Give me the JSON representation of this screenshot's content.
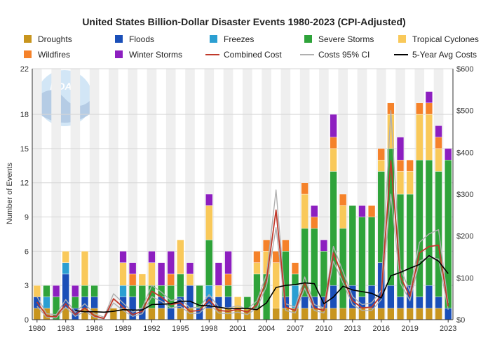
{
  "chart_data": {
    "type": "bar",
    "title": "United States Billion-Dollar Disaster Events 1980-2023 (CPI-Adjusted)",
    "ylabel": "Number of Events",
    "ylim": [
      0,
      22
    ],
    "y2lim": [
      0,
      600
    ],
    "yticks": [
      "0",
      "3",
      "6",
      "9",
      "12",
      "15",
      "18",
      "22"
    ],
    "y2ticks": [
      "$0",
      "$100",
      "$200",
      "$300",
      "$400",
      "$500",
      "$600"
    ],
    "xtick_labels": [
      "1980",
      "1983",
      "1986",
      "1989",
      "1992",
      "1995",
      "1998",
      "2001",
      "2004",
      "2007",
      "2010",
      "2013",
      "2016",
      "2019",
      "2023"
    ],
    "grid": true,
    "logo": "NOAA",
    "years": [
      1980,
      1981,
      1982,
      1983,
      1984,
      1985,
      1986,
      1987,
      1988,
      1989,
      1990,
      1991,
      1992,
      1993,
      1994,
      1995,
      1996,
      1997,
      1998,
      1999,
      2000,
      2001,
      2002,
      2003,
      2004,
      2005,
      2006,
      2007,
      2008,
      2009,
      2010,
      2011,
      2012,
      2013,
      2014,
      2015,
      2016,
      2017,
      2018,
      2019,
      2020,
      2021,
      2022,
      2023
    ],
    "series": [
      {
        "name": "Droughts",
        "color": "#c8951e",
        "values": [
          1,
          1,
          0,
          1,
          0,
          1,
          1,
          0,
          1,
          1,
          0,
          0,
          1,
          1,
          0,
          1,
          1,
          0,
          1,
          1,
          1,
          1,
          1,
          1,
          0,
          1,
          1,
          1,
          1,
          1,
          1,
          1,
          1,
          1,
          1,
          1,
          1,
          1,
          1,
          1,
          1,
          1,
          1,
          0
        ]
      },
      {
        "name": "Floods",
        "color": "#1a4fb8",
        "values": [
          1,
          0,
          0,
          3,
          1,
          1,
          1,
          0,
          0,
          1,
          2,
          1,
          0,
          1,
          1,
          1,
          2,
          1,
          1,
          1,
          1,
          0,
          0,
          0,
          0,
          0,
          1,
          0,
          1,
          1,
          1,
          2,
          0,
          2,
          1,
          2,
          4,
          2,
          1,
          2,
          1,
          2,
          1,
          1
        ]
      },
      {
        "name": "Freezes",
        "color": "#2b9fd2",
        "values": [
          0,
          1,
          0,
          1,
          0,
          0,
          0,
          0,
          0,
          1,
          0,
          0,
          0,
          0,
          0,
          0,
          0,
          0,
          1,
          0,
          0,
          0,
          0,
          0,
          0,
          0,
          0,
          2,
          0,
          0,
          0,
          0,
          0,
          0,
          0,
          0,
          0,
          0,
          0,
          0,
          0,
          0,
          0,
          0
        ]
      },
      {
        "name": "Severe Storms",
        "color": "#2fa33a",
        "values": [
          0,
          1,
          2,
          0,
          1,
          1,
          1,
          0,
          0,
          0,
          1,
          2,
          2,
          1,
          2,
          2,
          0,
          2,
          4,
          0,
          1,
          0,
          1,
          3,
          4,
          0,
          4,
          1,
          6,
          6,
          4,
          10,
          7,
          7,
          7,
          6,
          8,
          12,
          9,
          8,
          12,
          11,
          11,
          13
        ]
      },
      {
        "name": "Tropical Cyclones",
        "color": "#f9c95a",
        "values": [
          1,
          0,
          0,
          1,
          0,
          3,
          0,
          0,
          0,
          2,
          0,
          1,
          2,
          0,
          0,
          3,
          1,
          0,
          3,
          1,
          0,
          1,
          0,
          1,
          2,
          4,
          0,
          0,
          3,
          0,
          0,
          2,
          2,
          0,
          0,
          0,
          1,
          3,
          2,
          2,
          4,
          4,
          2,
          0
        ]
      },
      {
        "name": "Wildfires",
        "color": "#f5822a",
        "values": [
          0,
          0,
          0,
          0,
          0,
          0,
          0,
          0,
          0,
          0,
          1,
          0,
          0,
          0,
          1,
          0,
          0,
          0,
          0,
          0,
          1,
          0,
          0,
          1,
          1,
          1,
          1,
          1,
          1,
          1,
          0,
          1,
          1,
          0,
          0,
          1,
          1,
          1,
          1,
          1,
          1,
          1,
          1,
          0
        ]
      },
      {
        "name": "Winter Storms",
        "color": "#8d1fc0",
        "values": [
          0,
          0,
          1,
          0,
          1,
          0,
          0,
          0,
          0,
          1,
          1,
          0,
          1,
          2,
          2,
          0,
          1,
          0,
          1,
          2,
          2,
          0,
          0,
          0,
          0,
          0,
          0,
          0,
          0,
          1,
          1,
          2,
          0,
          0,
          1,
          0,
          0,
          0,
          2,
          0,
          0,
          1,
          1,
          1
        ]
      }
    ],
    "lines": [
      {
        "name": "Combined Cost",
        "color": "#c0392b",
        "values": [
          42,
          9,
          7,
          38,
          12,
          28,
          9,
          3,
          50,
          30,
          12,
          20,
          68,
          54,
          36,
          40,
          20,
          22,
          48,
          22,
          20,
          25,
          18,
          36,
          94,
          262,
          30,
          22,
          88,
          28,
          22,
          160,
          100,
          45,
          28,
          30,
          58,
          380,
          103,
          55,
          160,
          175,
          178,
          32
        ]
      },
      {
        "name": "Costs 95% CI",
        "color": "#b0b0b0",
        "values": [
          55,
          14,
          12,
          48,
          18,
          38,
          14,
          6,
          62,
          40,
          18,
          28,
          82,
          66,
          46,
          50,
          28,
          30,
          60,
          30,
          28,
          33,
          25,
          45,
          108,
          310,
          38,
          30,
          102,
          36,
          28,
          175,
          115,
          55,
          36,
          40,
          70,
          500,
          122,
          68,
          185,
          205,
          215,
          40
        ]
      },
      {
        "name": "Costs 95% CI",
        "color": "#b0b0b0",
        "values": [
          32,
          6,
          4,
          30,
          8,
          20,
          6,
          2,
          40,
          22,
          8,
          14,
          55,
          44,
          28,
          32,
          14,
          16,
          38,
          16,
          14,
          18,
          12,
          28,
          80,
          220,
          22,
          16,
          75,
          22,
          16,
          140,
          88,
          36,
          22,
          22,
          48,
          300,
          88,
          45,
          140,
          150,
          145,
          24
        ]
      },
      {
        "name": "5-Year Avg Costs",
        "color": "#000000",
        "values": [
          null,
          null,
          null,
          null,
          22,
          19,
          19,
          18,
          20,
          24,
          23,
          23,
          36,
          37,
          38,
          44,
          44,
          34,
          33,
          30,
          26,
          27,
          27,
          24,
          40,
          77,
          82,
          84,
          88,
          86,
          38,
          54,
          80,
          71,
          67,
          63,
          52,
          105,
          113,
          123,
          132,
          153,
          140,
          110
        ]
      }
    ],
    "annotations": []
  }
}
